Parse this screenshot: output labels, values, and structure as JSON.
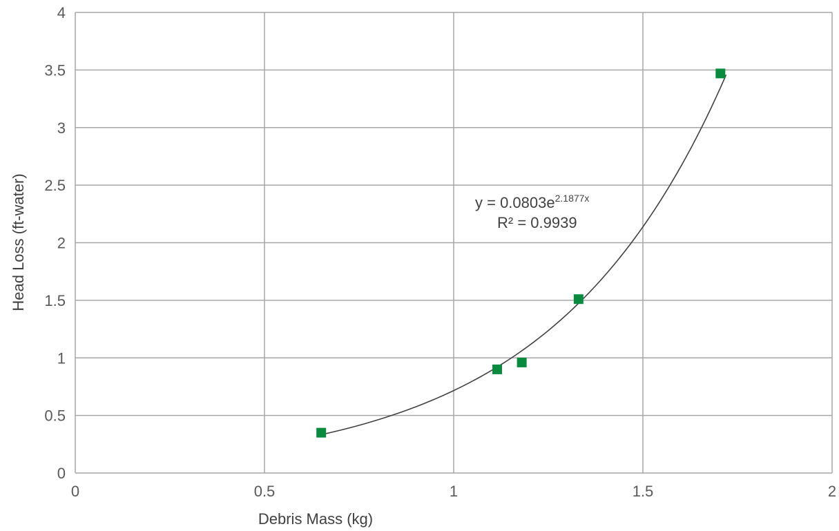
{
  "chart_data": {
    "type": "scatter",
    "xlabel": "Debris Mass (kg)",
    "ylabel": "Head Loss (ft-water)",
    "xlim": [
      0,
      2
    ],
    "ylim": [
      0,
      4
    ],
    "x_ticks": [
      "0",
      "0.5",
      "1",
      "1.5",
      "2"
    ],
    "y_ticks": [
      "0",
      "0.5",
      "1",
      "1.5",
      "2",
      "2.5",
      "3",
      "3.5",
      "4"
    ],
    "grid": true,
    "marker": "square",
    "marker_color": "#0a8a3e",
    "trendline_color": "#404040",
    "series": [
      {
        "x": [
          0.65,
          1.115,
          1.18,
          1.33,
          1.705
        ],
        "y": [
          0.35,
          0.9,
          0.96,
          1.51,
          3.47
        ]
      }
    ],
    "trendline": {
      "type": "exponential",
      "a": 0.0803,
      "b": 2.1877,
      "x_range": [
        0.65,
        1.72
      ],
      "equation_main": "y = 0.0803e",
      "equation_exponent": "2.1877x",
      "r_squared": "R² = 0.9939"
    }
  }
}
